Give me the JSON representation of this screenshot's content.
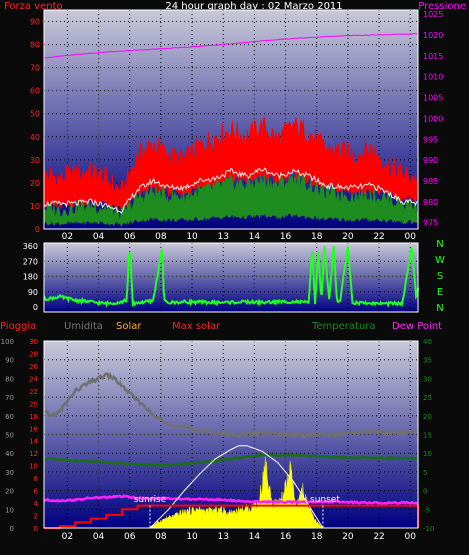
{
  "chart_data": [
    {
      "type": "line",
      "title": "24 hour graph day : 02 Marzo 2011",
      "left_axis_label": "Forza vento",
      "right_axis_label": "Pressione",
      "x_ticks": [
        "02",
        "04",
        "06",
        "08",
        "10",
        "13",
        "14",
        "16",
        "18",
        "20",
        "22",
        "00"
      ],
      "y_left_ticks": [
        "0",
        "10",
        "20",
        "30",
        "40",
        "50",
        "60",
        "70",
        "80",
        "90"
      ],
      "ylim_left": [
        0,
        95
      ],
      "y_right_ticks": [
        "975",
        "980",
        "985",
        "990",
        "995",
        "1000",
        "1005",
        "1010",
        "1015",
        "1020",
        "1025"
      ],
      "ylim_right": [
        973.5,
        1026
      ],
      "series": [
        {
          "name": "Forza vento",
          "axis": "left",
          "color": "#ff0000",
          "kind": "gust_band",
          "x": [
            0,
            1,
            2,
            3,
            4,
            5,
            6,
            7,
            8,
            9,
            10,
            11,
            12,
            13,
            14,
            15,
            16,
            17,
            18,
            19,
            20,
            21,
            22,
            23,
            24
          ],
          "values": [
            22,
            20,
            22,
            23,
            20,
            14,
            30,
            35,
            30,
            28,
            34,
            38,
            41,
            38,
            43,
            37,
            43,
            40,
            33,
            32,
            30,
            33,
            26,
            22,
            20
          ]
        },
        {
          "name": "",
          "axis": "left",
          "color": "#1e8c1e",
          "kind": "band",
          "x": [
            0,
            1,
            2,
            3,
            4,
            5,
            6,
            7,
            8,
            9,
            10,
            11,
            12,
            13,
            14,
            15,
            16,
            17,
            18,
            19,
            20,
            21,
            22,
            23,
            24
          ],
          "values": [
            7,
            6,
            7,
            8,
            7,
            4,
            11,
            14,
            12,
            12,
            14,
            16,
            18,
            17,
            19,
            17,
            20,
            17,
            14,
            13,
            12,
            13,
            11,
            9,
            8
          ]
        },
        {
          "name": "",
          "axis": "left",
          "color": "#f0f0f0",
          "kind": "line",
          "x": [
            0,
            1,
            2,
            3,
            4,
            5,
            6,
            7,
            8,
            9,
            10,
            11,
            12,
            13,
            14,
            15,
            16,
            17,
            18,
            19,
            20,
            21,
            22,
            23,
            24
          ],
          "values": [
            11,
            11,
            11,
            12,
            10,
            8,
            17,
            21,
            18,
            18,
            21,
            22,
            25,
            23,
            26,
            23,
            25,
            23,
            19,
            18,
            18,
            19,
            16,
            12,
            11
          ]
        },
        {
          "name": "Pressione",
          "axis": "right",
          "color": "#ff00ff",
          "kind": "line",
          "x": [
            0,
            2,
            4,
            6,
            8,
            10,
            12,
            14,
            16,
            18,
            20,
            22,
            24
          ],
          "values": [
            1014.5,
            1015.3,
            1015.9,
            1016.4,
            1016.8,
            1017.3,
            1017.9,
            1018.6,
            1019.2,
            1019.6,
            1019.9,
            1020.1,
            1020.3
          ]
        }
      ]
    },
    {
      "type": "line",
      "title": "",
      "x_ticks": [
        "02",
        "04",
        "06",
        "08",
        "10",
        "13",
        "14",
        "16",
        "18",
        "20",
        "22",
        "00"
      ],
      "y_left_ticks": [
        "0",
        "90",
        "180",
        "270",
        "360"
      ],
      "ylim_left": [
        0,
        360
      ],
      "direction_labels": [
        "N",
        "W",
        "S",
        "E",
        "N"
      ],
      "series": [
        {
          "name": "",
          "color": "#22ff22",
          "kind": "line",
          "x": [
            0,
            1,
            2,
            3,
            4,
            4.5,
            5,
            5.3,
            5.5,
            5.7,
            6,
            7,
            7.6,
            7.7,
            7.8,
            8,
            9,
            10,
            11,
            12,
            13,
            14,
            15,
            16,
            17,
            17.2,
            17.4,
            17.6,
            17.8,
            18,
            18.3,
            18.6,
            18.8,
            19,
            19.5,
            19.8,
            20,
            21,
            22,
            23,
            23.6,
            23.9,
            24
          ],
          "values": [
            45,
            60,
            40,
            30,
            20,
            25,
            30,
            40,
            360,
            20,
            25,
            35,
            360,
            40,
            30,
            25,
            30,
            28,
            26,
            28,
            30,
            27,
            30,
            32,
            25,
            360,
            20,
            360,
            30,
            360,
            40,
            360,
            35,
            30,
            360,
            28,
            25,
            22,
            20,
            20,
            360,
            40,
            110
          ]
        }
      ]
    },
    {
      "type": "line",
      "title": "",
      "legend": [
        "Pioggia",
        "Umidita",
        "Solar",
        "Max solar",
        "Temperatura",
        "Dew Point"
      ],
      "x_ticks": [
        "02",
        "04",
        "06",
        "08",
        "10",
        "13",
        "14",
        "16",
        "18",
        "20",
        "22",
        "00"
      ],
      "y_outer_ticks": [
        "0",
        "10",
        "20",
        "30",
        "40",
        "50",
        "60",
        "70",
        "80",
        "90",
        "100"
      ],
      "y_rain_ticks": [
        "0",
        "2",
        "4",
        "6",
        "8",
        "10",
        "12",
        "14",
        "16",
        "18",
        "20",
        "22",
        "24",
        "26",
        "28",
        "30"
      ],
      "y_temp_ticks": [
        "-10",
        "-5",
        "0",
        "5",
        "10",
        "15",
        "20",
        "25",
        "30",
        "35",
        "40"
      ],
      "ylim_outer": [
        0,
        100
      ],
      "ylim_temp": [
        -10,
        40
      ],
      "annotations": [
        "sunrise",
        "sunset"
      ],
      "sunrise_hour": 6.8,
      "sunset_hour": 17.9,
      "series": [
        {
          "name": "Umidita",
          "axis": "outer",
          "color": "#707070",
          "kind": "line",
          "x": [
            0,
            0.5,
            1,
            1.5,
            2,
            2.5,
            3,
            3.5,
            4,
            4.5,
            5,
            5.5,
            6,
            6.5,
            7,
            7.5,
            8,
            8.5,
            9,
            9.5,
            10,
            11,
            12,
            13,
            14,
            15,
            16,
            17,
            18,
            19,
            20,
            21,
            22,
            23,
            24
          ],
          "values": [
            62,
            60,
            62,
            68,
            73,
            76,
            78,
            80,
            82,
            80,
            76,
            72,
            68,
            65,
            60,
            58,
            56,
            54,
            54,
            53,
            52,
            51,
            50,
            50,
            51,
            50,
            50,
            50,
            50,
            50,
            51,
            52,
            51,
            51,
            52
          ]
        },
        {
          "name": "Temperatura",
          "axis": "temp",
          "color": "#1a6e1a",
          "kind": "line",
          "x": [
            0,
            2,
            4,
            6,
            8,
            10,
            12,
            14,
            16,
            18,
            20,
            22,
            24
          ],
          "values": [
            8.5,
            8,
            7.5,
            7,
            6.8,
            7.5,
            8.5,
            9.5,
            9.5,
            9,
            8.8,
            8.7,
            8.5
          ]
        },
        {
          "name": "Dew Point",
          "axis": "temp",
          "color": "#ff22ff",
          "kind": "line",
          "x": [
            0,
            1,
            2,
            3,
            4,
            5,
            6,
            7,
            8,
            9,
            10,
            11,
            12,
            13,
            14,
            15,
            16,
            17,
            18,
            19,
            20,
            21,
            22,
            23,
            24
          ],
          "values": [
            -2.5,
            -2.7,
            -2.5,
            -2,
            -1.8,
            -1.5,
            -2,
            -2.2,
            -2,
            -2.3,
            -2.3,
            -2.4,
            -2.6,
            -2.9,
            -3,
            -3,
            -3.1,
            -3,
            -3,
            -3,
            -3.2,
            -3.3,
            -3.3,
            -3.2,
            -3.3
          ]
        },
        {
          "name": "Pioggia",
          "axis": "outer",
          "color": "#ff0000",
          "kind": "step",
          "x": [
            0,
            1,
            2,
            3,
            4,
            5,
            6,
            24
          ],
          "values": [
            0,
            1,
            3,
            5,
            7,
            10,
            12,
            12
          ]
        },
        {
          "name": "Max solar",
          "axis": "outer",
          "color": "#ffffff",
          "kind": "curve",
          "x": [
            6.8,
            8,
            9,
            10,
            11,
            12,
            12.5,
            13,
            14,
            15,
            16,
            17,
            17.9
          ],
          "values": [
            0,
            10,
            20,
            29,
            37,
            42,
            44,
            44,
            41,
            35,
            25,
            12,
            0
          ]
        },
        {
          "name": "Solar",
          "axis": "outer",
          "color": "#ffff00",
          "kind": "area",
          "x": [
            6.8,
            7.3,
            7.8,
            8.3,
            8.8,
            9.3,
            9.8,
            10.3,
            10.8,
            11.3,
            11.8,
            12.3,
            12.8,
            13.3,
            13.8,
            14.2,
            14.6,
            15,
            15.4,
            15.8,
            16.2,
            16.6,
            17,
            17.4,
            17.9
          ],
          "values": [
            0,
            3,
            5,
            6,
            8,
            9,
            10,
            9,
            9,
            10,
            8,
            9,
            10,
            11,
            14,
            33,
            14,
            12,
            18,
            30,
            10,
            20,
            10,
            4,
            0
          ]
        }
      ]
    }
  ],
  "colors": {
    "gradient_top": "#c8c8d8",
    "gradient_bottom": "#000088",
    "grid": "#000000",
    "frame": "#ffffff"
  }
}
